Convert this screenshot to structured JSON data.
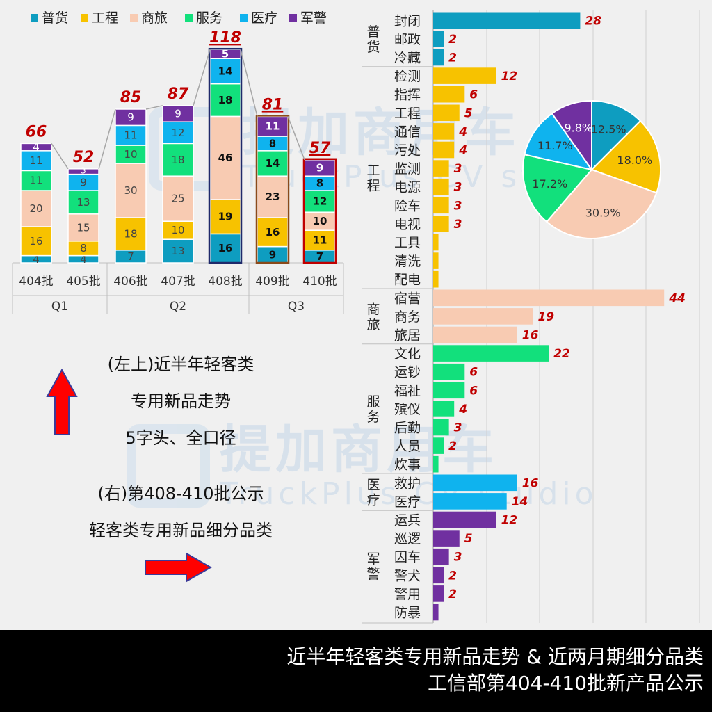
{
  "colors": {
    "普货": "#0e9dc0",
    "工程": "#f7c200",
    "商旅": "#f8cbb2",
    "服务": "#12e07c",
    "医疗": "#0fb3ee",
    "军警": "#7030a0",
    "total_label": "#c00000",
    "bar_label": "#c00000",
    "pie_label": "#333333",
    "arrow_fill": "#ff0000",
    "arrow_stroke": "#3a3a9a"
  },
  "notes": {
    "line1": "(左上)近半年轻客类",
    "line2": "专用新品走势",
    "line3": "5字头、全口径",
    "line4": "(右)第408-410批公示",
    "line5": "轻客类专用新品细分品类"
  },
  "footer": {
    "line1": "近半年轻客类专用新品走势 & 近两月期细分品类",
    "line2": "工信部第404-410批新产品公示"
  },
  "watermark": {
    "cn": "提加商用车",
    "en": "TruckPlus CV studio"
  },
  "chart_data": [
    {
      "type": "bar",
      "stacked": true,
      "legend": [
        "普货",
        "工程",
        "商旅",
        "服务",
        "医疗",
        "军警"
      ],
      "legend_position": "top",
      "categories": [
        "404批",
        "405批",
        "406批",
        "407批",
        "408批",
        "409批",
        "410批"
      ],
      "groups": [
        {
          "label": "Q1",
          "span": 2
        },
        {
          "label": "Q2",
          "span": 3
        },
        {
          "label": "Q3",
          "span": 2
        }
      ],
      "series": [
        {
          "name": "普货",
          "values": [
            4,
            4,
            7,
            13,
            16,
            9,
            7
          ]
        },
        {
          "name": "工程",
          "values": [
            16,
            8,
            18,
            10,
            19,
            16,
            11
          ]
        },
        {
          "name": "商旅",
          "values": [
            20,
            15,
            30,
            25,
            46,
            23,
            10
          ]
        },
        {
          "name": "服务",
          "values": [
            11,
            13,
            10,
            18,
            18,
            14,
            12
          ]
        },
        {
          "name": "医疗",
          "values": [
            11,
            9,
            11,
            12,
            14,
            8,
            8
          ]
        },
        {
          "name": "军警",
          "values": [
            4,
            3,
            9,
            9,
            5,
            11,
            9
          ]
        }
      ],
      "totals": [
        66,
        52,
        85,
        87,
        118,
        81,
        57
      ],
      "highlighted": [
        "408批",
        "409批",
        "410批"
      ],
      "grid": false
    },
    {
      "type": "bar",
      "orientation": "horizontal",
      "grid": true,
      "groups": [
        {
          "name": "普货",
          "items": [
            {
              "label": "封闭",
              "value": 28
            },
            {
              "label": "邮政",
              "value": 2
            },
            {
              "label": "冷藏",
              "value": 2
            }
          ]
        },
        {
          "name": "工程",
          "items": [
            {
              "label": "检测",
              "value": 12
            },
            {
              "label": "指挥",
              "value": 6
            },
            {
              "label": "工程",
              "value": 5
            },
            {
              "label": "通信",
              "value": 4
            },
            {
              "label": "污处",
              "value": 4
            },
            {
              "label": "监测",
              "value": 3
            },
            {
              "label": "电源",
              "value": 3
            },
            {
              "label": "险车",
              "value": 3
            },
            {
              "label": "电视",
              "value": 3
            },
            {
              "label": "工具",
              "value": 1
            },
            {
              "label": "清洗",
              "value": 1
            },
            {
              "label": "配电",
              "value": 1
            }
          ]
        },
        {
          "name": "商旅",
          "items": [
            {
              "label": "宿营",
              "value": 44
            },
            {
              "label": "商务",
              "value": 19
            },
            {
              "label": "旅居",
              "value": 16
            }
          ]
        },
        {
          "name": "服务",
          "items": [
            {
              "label": "文化",
              "value": 22
            },
            {
              "label": "运钞",
              "value": 6
            },
            {
              "label": "福祉",
              "value": 6
            },
            {
              "label": "殡仪",
              "value": 4
            },
            {
              "label": "后勤",
              "value": 3
            },
            {
              "label": "人员",
              "value": 2
            },
            {
              "label": "炊事",
              "value": 1
            }
          ]
        },
        {
          "name": "医疗",
          "items": [
            {
              "label": "救护",
              "value": 16
            },
            {
              "label": "医疗",
              "value": 14
            }
          ]
        },
        {
          "name": "军警",
          "items": [
            {
              "label": "运兵",
              "value": 12
            },
            {
              "label": "巡逻",
              "value": 5
            },
            {
              "label": "囚车",
              "value": 3
            },
            {
              "label": "警犬",
              "value": 2
            },
            {
              "label": "警用",
              "value": 2
            },
            {
              "label": "防暴",
              "value": 1
            }
          ]
        }
      ],
      "hidden_value_labels": [
        "工具",
        "清洗",
        "配电",
        "炊事",
        "防暴"
      ]
    },
    {
      "type": "pie",
      "slices": [
        {
          "name": "普货",
          "value": 12.5,
          "label": "12.5%"
        },
        {
          "name": "工程",
          "value": 18.0,
          "label": "18.0%"
        },
        {
          "name": "商旅",
          "value": 30.9,
          "label": "30.9%"
        },
        {
          "name": "服务",
          "value": 17.2,
          "label": "17.2%"
        },
        {
          "name": "医疗",
          "value": 11.7,
          "label": "11.7%"
        },
        {
          "name": "军警",
          "value": 9.8,
          "label": "9.8%"
        }
      ],
      "start_angle_deg": 0,
      "direction": "clockwise"
    }
  ]
}
